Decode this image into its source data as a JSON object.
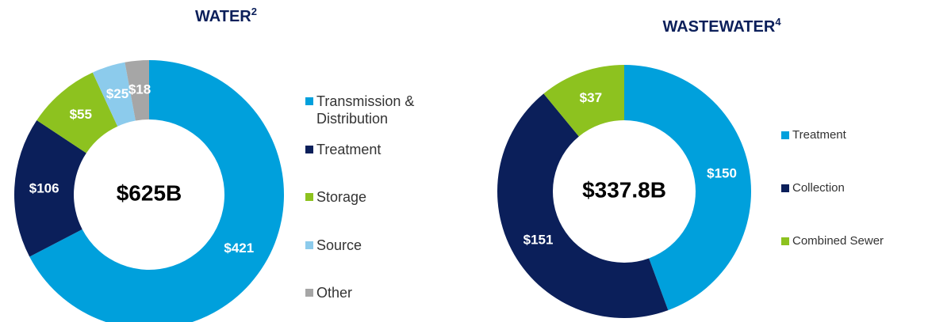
{
  "chart_data": [
    {
      "type": "donut",
      "title": "WATER",
      "title_superscript": "2",
      "center_label": "$625B",
      "categories": [
        "Transmission & Distribution",
        "Treatment",
        "Storage",
        "Source",
        "Other"
      ],
      "values": [
        421,
        106,
        55,
        25,
        18
      ],
      "value_labels": [
        "$421",
        "$106",
        "$55",
        "$25",
        "$18"
      ],
      "colors": [
        "#00a0dc",
        "#0b1f5a",
        "#8dc21f",
        "#8ccbec",
        "#a6a6a6"
      ]
    },
    {
      "type": "donut",
      "title": "WASTEWATER",
      "title_superscript": "4",
      "center_label": "$337.8B",
      "categories": [
        "Treatment",
        "Collection",
        "Combined Sewer"
      ],
      "values": [
        150,
        151,
        37
      ],
      "value_labels": [
        "$150",
        "$151",
        "$37"
      ],
      "colors": [
        "#00a0dc",
        "#0b1f5a",
        "#8dc21f"
      ]
    }
  ]
}
